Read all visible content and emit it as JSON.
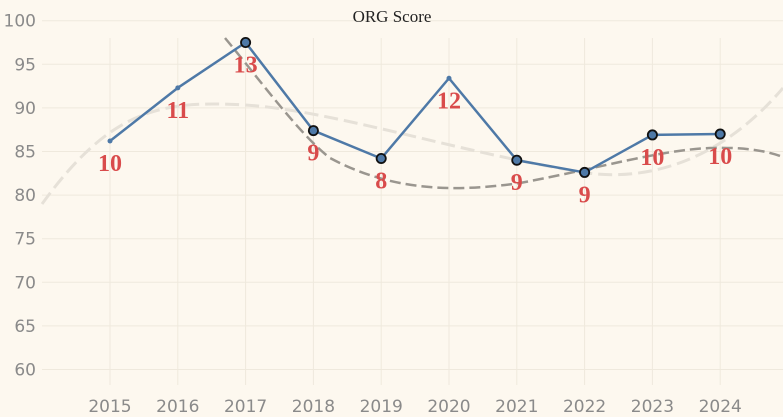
{
  "chart_data": {
    "type": "line",
    "title": "ORG Score",
    "xlabel": "",
    "ylabel": "",
    "categories": [
      "2015",
      "2016",
      "2017",
      "2018",
      "2019",
      "2020",
      "2021",
      "2022",
      "2023",
      "2024"
    ],
    "series": [
      {
        "values": [
          86.2,
          92.3,
          97.5,
          87.4,
          84.2,
          93.4,
          84.0,
          82.6,
          86.9,
          87.0
        ],
        "data_labels": [
          "10",
          "11",
          "13",
          "9",
          "8",
          "12",
          "9",
          "9",
          "10",
          "10"
        ],
        "highlighted": [
          false,
          false,
          true,
          true,
          true,
          false,
          true,
          true,
          true,
          true
        ],
        "color": "#4e79a7"
      }
    ],
    "trendlines": [
      {
        "style": "light-dashed",
        "color": "#e6e1d8"
      },
      {
        "style": "dark-dashed",
        "color": "#9a968f"
      }
    ],
    "yticks": [
      60,
      65,
      70,
      75,
      80,
      85,
      90,
      95,
      100
    ],
    "ylim": [
      58,
      102
    ],
    "grid": true,
    "legend": "none",
    "colors": {
      "background": "#fdf8ef",
      "line": "#4e79a7",
      "label": "#d94b4b"
    }
  }
}
